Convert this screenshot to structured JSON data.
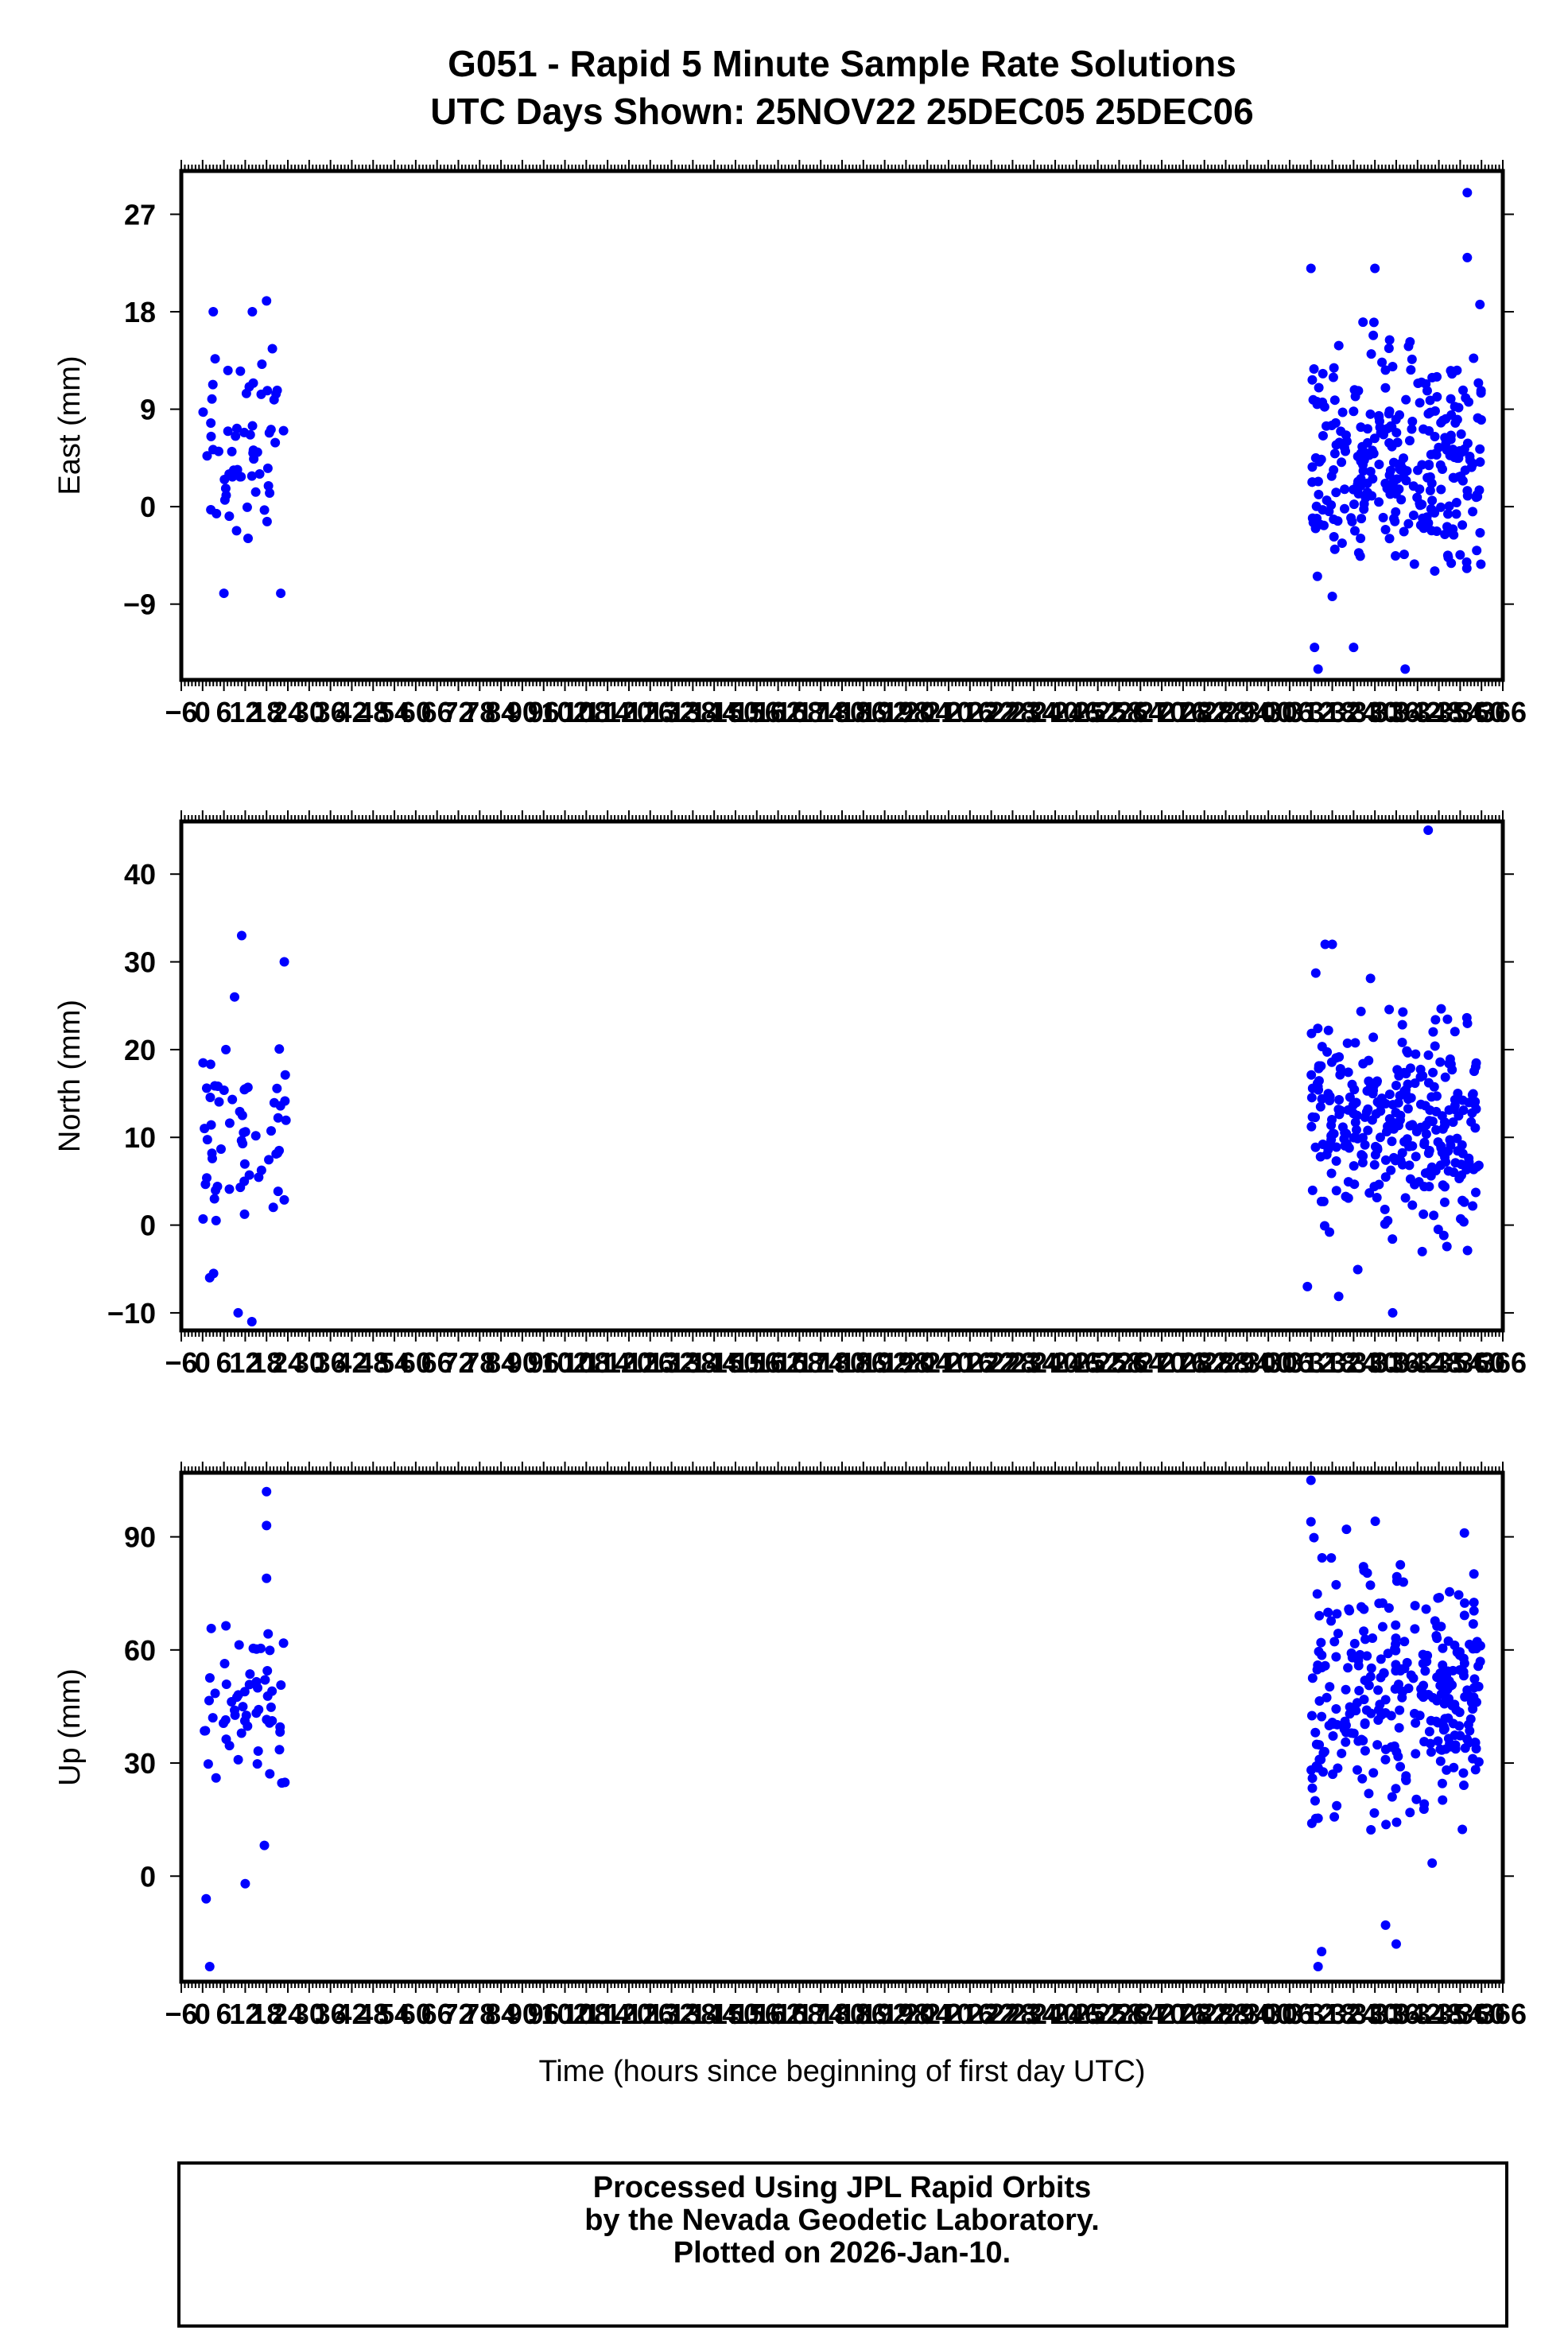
{
  "title_line1": "G051 - Rapid 5 Minute Sample Rate Solutions",
  "title_line2": "UTC Days Shown:  25NOV22 25DEC05 25DEC06",
  "xlabel": "Time (hours since beginning of first day UTC)",
  "footer": {
    "line1": "Processed Using JPL Rapid Orbits",
    "line2": "by the Nevada Geodetic Laboratory.",
    "line3": "Plotted on 2026-Jan-10."
  },
  "colors": {
    "points": "#0000ff",
    "frame": "#000000"
  },
  "chart_data": [
    {
      "type": "scatter",
      "ylabel": "East (mm)",
      "xlim": [
        -6,
        366
      ],
      "ylim": [
        -16,
        31
      ],
      "yticks": [
        -9,
        0,
        9,
        18,
        27
      ],
      "xticks": [
        -6,
        0,
        6,
        12,
        18,
        24,
        30,
        36,
        42,
        48,
        54,
        60,
        66,
        72,
        78,
        84,
        90,
        96,
        102,
        108,
        114,
        120,
        126,
        132,
        138,
        144,
        150,
        156,
        162,
        168,
        174,
        180,
        186,
        192,
        198,
        204,
        210,
        216,
        222,
        228,
        234,
        240,
        246,
        252,
        258,
        264,
        270,
        276,
        282,
        288,
        294,
        300,
        306,
        312,
        318,
        324,
        330,
        336,
        342,
        348,
        354,
        360,
        366
      ],
      "series": [
        {
          "segments": [
            {
              "x_start": 0,
              "x_end": 24,
              "mean": 5,
              "sd": 4.5,
              "outliers": [
                [
                  18,
                  19
                ],
                [
                  3,
                  18
                ],
                [
                  14,
                  18
                ],
                [
                  6,
                  -8
                ],
                [
                  22,
                  -8
                ]
              ]
            },
            {
              "x_start": 312,
              "x_end": 360,
              "mean": 4,
              "sd": 5,
              "outliers": [
                [
                  312,
                  22
                ],
                [
                  330,
                  22
                ],
                [
                  356,
                  29
                ],
                [
                  356,
                  23
                ],
                [
                  313,
                  -13
                ],
                [
                  314,
                  -15
                ],
                [
                  324,
                  -13
                ]
              ]
            }
          ]
        }
      ]
    },
    {
      "type": "scatter",
      "ylabel": "North (mm)",
      "xlim": [
        -6,
        366
      ],
      "ylim": [
        -12,
        46
      ],
      "yticks": [
        -10,
        0,
        10,
        20,
        30,
        40
      ],
      "xticks": [
        -6,
        0,
        6,
        12,
        18,
        24,
        30,
        36,
        42,
        48,
        54,
        60,
        66,
        72,
        78,
        84,
        90,
        96,
        102,
        108,
        114,
        120,
        126,
        132,
        138,
        144,
        150,
        156,
        162,
        168,
        174,
        180,
        186,
        192,
        198,
        204,
        210,
        216,
        222,
        228,
        234,
        240,
        246,
        252,
        258,
        264,
        270,
        276,
        282,
        288,
        294,
        300,
        306,
        312,
        318,
        324,
        330,
        336,
        342,
        348,
        354,
        360,
        366
      ],
      "series": [
        {
          "segments": [
            {
              "x_start": 0,
              "x_end": 24,
              "mean": 8,
              "sd": 6,
              "outliers": [
                [
                  11,
                  33
                ],
                [
                  23,
                  30
                ],
                [
                  9,
                  26
                ],
                [
                  10,
                  -10
                ],
                [
                  2,
                  -6
                ]
              ]
            },
            {
              "x_start": 312,
              "x_end": 360,
              "mean": 12,
              "sd": 6,
              "outliers": [
                [
                  345,
                  45
                ],
                [
                  318,
                  32
                ],
                [
                  316,
                  32
                ],
                [
                  335,
                  -10
                ],
                [
                  311,
                  -7
                ]
              ]
            }
          ]
        }
      ]
    },
    {
      "type": "scatter",
      "ylabel": "Up (mm)",
      "xlim": [
        -6,
        366
      ],
      "ylim": [
        -28,
        107
      ],
      "yticks": [
        0,
        30,
        60,
        90
      ],
      "xticks": [
        -6,
        0,
        6,
        12,
        18,
        24,
        30,
        36,
        42,
        48,
        54,
        60,
        66,
        72,
        78,
        84,
        90,
        96,
        102,
        108,
        114,
        120,
        126,
        132,
        138,
        144,
        150,
        156,
        162,
        168,
        174,
        180,
        186,
        192,
        198,
        204,
        210,
        216,
        222,
        228,
        234,
        240,
        246,
        252,
        258,
        264,
        270,
        276,
        282,
        288,
        294,
        300,
        306,
        312,
        318,
        324,
        330,
        336,
        342,
        348,
        354,
        360,
        366
      ],
      "series": [
        {
          "segments": [
            {
              "x_start": 0,
              "x_end": 24,
              "mean": 45,
              "sd": 12,
              "outliers": [
                [
                  18,
                  102
                ],
                [
                  18,
                  93
                ],
                [
                  18,
                  79
                ],
                [
                  2,
                  -24
                ],
                [
                  12,
                  -2
                ],
                [
                  1,
                  -6
                ]
              ]
            },
            {
              "x_start": 312,
              "x_end": 360,
              "mean": 47,
              "sd": 15,
              "outliers": [
                [
                  312,
                  105
                ],
                [
                  312,
                  94
                ],
                [
                  322,
                  92
                ],
                [
                  314,
                  -24
                ],
                [
                  315,
                  -20
                ],
                [
                  336,
                  -18
                ],
                [
                  333,
                  -13
                ]
              ]
            }
          ]
        }
      ]
    }
  ]
}
